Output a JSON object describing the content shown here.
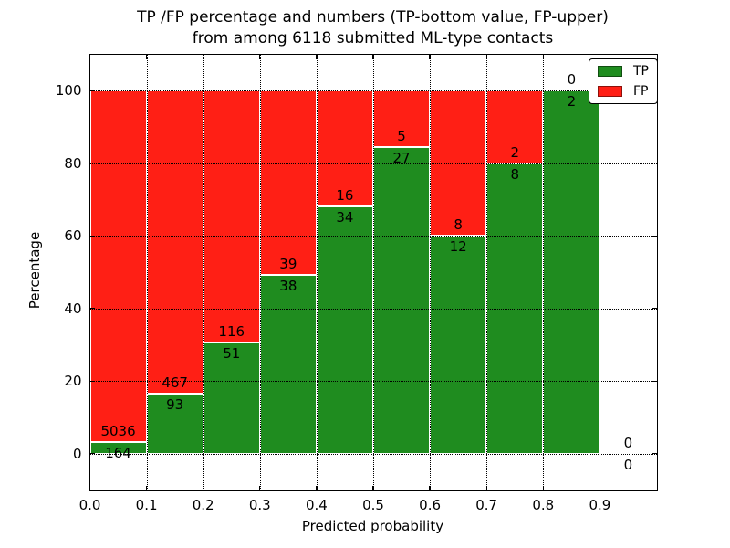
{
  "figure": {
    "title_lines": [
      "TP /FP percentage and numbers (TP-bottom value, FP-upper)",
      "from among 6118 submitted ML-type contacts"
    ]
  },
  "chart_data": {
    "type": "bar",
    "stacked": true,
    "title": "TP /FP percentage and numbers (TP-bottom value, FP-upper) from among 6118 submitted ML-type contacts",
    "xlabel": "Predicted probability",
    "ylabel": "Percentage",
    "xlim": [
      0.0,
      1.0
    ],
    "ylim": [
      -10,
      110
    ],
    "grid": "dotted",
    "legend_position": "upper right",
    "total_contacts": 6118,
    "bins": {
      "start": 0.0,
      "width": 0.1,
      "count": 10
    },
    "x_tick_labels": [
      "0.0",
      "0.1",
      "0.2",
      "0.3",
      "0.4",
      "0.5",
      "0.6",
      "0.7",
      "0.8",
      "0.9"
    ],
    "y_ticks": [
      0,
      20,
      40,
      60,
      80,
      100
    ],
    "series": [
      {
        "name": "TP",
        "color": "#1f8c1f",
        "counts": [
          164,
          93,
          51,
          38,
          34,
          27,
          12,
          8,
          2,
          0
        ]
      },
      {
        "name": "FP",
        "color": "#ff1f15",
        "counts": [
          5036,
          467,
          116,
          39,
          16,
          5,
          8,
          2,
          0,
          0
        ]
      }
    ],
    "tp_percent": [
      3.2,
      16.6,
      30.5,
      49.4,
      68.0,
      84.4,
      60.0,
      80.0,
      100.0,
      null
    ]
  }
}
